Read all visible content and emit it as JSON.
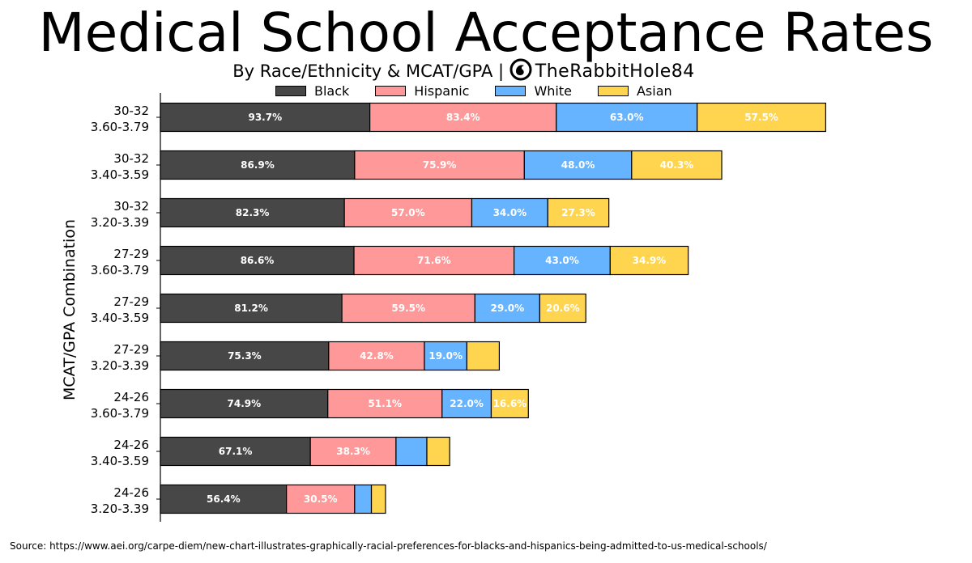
{
  "title": "Medical School Acceptance Rates",
  "subtitle": "By Race/Ethnicity & MCAT/GPA |",
  "handle": "TheRabbitHole84",
  "source": "Source: https://www.aei.org/carpe-diem/new-chart-illustrates-graphically-racial-preferences-for-blacks-and-hispanics-being-admitted-to-us-medical-schools/",
  "colors": {
    "Black": "#474747",
    "Hispanic": "#ff9999",
    "White": "#66b3ff",
    "Asian": "#ffd54f"
  },
  "chart_data": {
    "type": "bar",
    "orientation": "horizontal",
    "stacked": true,
    "title": "Medical School Acceptance Rates",
    "subtitle": "By Race/Ethnicity & MCAT/GPA |",
    "ylabel": "MCAT/GPA Combination",
    "xlabel": "",
    "legend_position": "top",
    "grid": false,
    "categories": [
      [
        "30-32",
        "3.60-3.79"
      ],
      [
        "30-32",
        "3.40-3.59"
      ],
      [
        "30-32",
        "3.20-3.39"
      ],
      [
        "27-29",
        "3.60-3.79"
      ],
      [
        "27-29",
        "3.40-3.59"
      ],
      [
        "27-29",
        "3.20-3.39"
      ],
      [
        "24-26",
        "3.60-3.79"
      ],
      [
        "24-26",
        "3.40-3.59"
      ],
      [
        "24-26",
        "3.20-3.39"
      ]
    ],
    "series": [
      {
        "name": "Black",
        "values": [
          93.7,
          86.9,
          82.3,
          86.6,
          81.2,
          75.3,
          74.9,
          67.1,
          56.4
        ]
      },
      {
        "name": "Hispanic",
        "values": [
          83.4,
          75.9,
          57.0,
          71.6,
          59.5,
          42.8,
          51.1,
          38.3,
          30.5
        ]
      },
      {
        "name": "White",
        "values": [
          63.0,
          48.0,
          34.0,
          43.0,
          29.0,
          19.0,
          22.0,
          13.8,
          7.5
        ]
      },
      {
        "name": "Asian",
        "values": [
          57.5,
          40.3,
          27.3,
          34.9,
          20.6,
          14.5,
          16.6,
          10.2,
          6.3
        ]
      }
    ],
    "label_threshold": 15
  }
}
